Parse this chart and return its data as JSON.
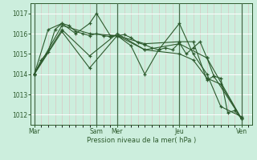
{
  "background_color": "#cceedd",
  "grid_color": "#ffffff",
  "line_color": "#2d5a2d",
  "ylabel": "Pression niveau de la mer( hPa )",
  "ylim": [
    1011.5,
    1017.5
  ],
  "yticks": [
    1012,
    1013,
    1014,
    1015,
    1016,
    1017
  ],
  "day_labels": [
    "Mar",
    "Sam",
    "Mer",
    "Jeu",
    "Ven"
  ],
  "day_positions": [
    0,
    72,
    96,
    168,
    240
  ],
  "xlim": [
    -4,
    252
  ],
  "series": [
    [
      0,
      1014.0,
      8,
      1014.7,
      16,
      1015.1,
      24,
      1016.2,
      32,
      1016.5,
      40,
      1016.4,
      48,
      1016.1,
      56,
      1016.0,
      64,
      1015.9,
      72,
      1016.0,
      80,
      1015.9,
      88,
      1015.85,
      96,
      1015.9,
      104,
      1015.95,
      112,
      1015.8,
      120,
      1015.55,
      128,
      1015.45,
      136,
      1015.3,
      144,
      1015.2,
      152,
      1015.3,
      160,
      1015.2,
      168,
      1015.55,
      176,
      1015.0,
      184,
      1015.3,
      192,
      1015.6,
      200,
      1014.8,
      208,
      1013.9,
      216,
      1013.8,
      224,
      1012.1,
      232,
      1012.2,
      240,
      1011.8
    ],
    [
      0,
      1014.0,
      16,
      1016.2,
      32,
      1016.5,
      48,
      1016.0,
      64,
      1016.5,
      72,
      1017.0,
      88,
      1015.9,
      96,
      1015.9,
      112,
      1015.4,
      128,
      1014.0,
      144,
      1015.2,
      168,
      1016.5,
      184,
      1015.0,
      200,
      1014.0,
      216,
      1012.4,
      240,
      1011.9
    ],
    [
      0,
      1014.0,
      32,
      1016.4,
      64,
      1016.0,
      96,
      1015.9,
      128,
      1015.2,
      168,
      1015.5,
      200,
      1014.8,
      240,
      1011.8
    ],
    [
      0,
      1014.0,
      32,
      1016.2,
      64,
      1014.9,
      96,
      1016.0,
      128,
      1015.2,
      168,
      1015.0,
      184,
      1014.7,
      200,
      1013.8,
      216,
      1013.5,
      240,
      1011.8
    ],
    [
      0,
      1014.0,
      32,
      1016.1,
      64,
      1014.3,
      96,
      1015.9,
      128,
      1015.5,
      168,
      1015.6,
      184,
      1015.6,
      200,
      1013.7,
      208,
      1013.9,
      240,
      1011.8
    ]
  ]
}
